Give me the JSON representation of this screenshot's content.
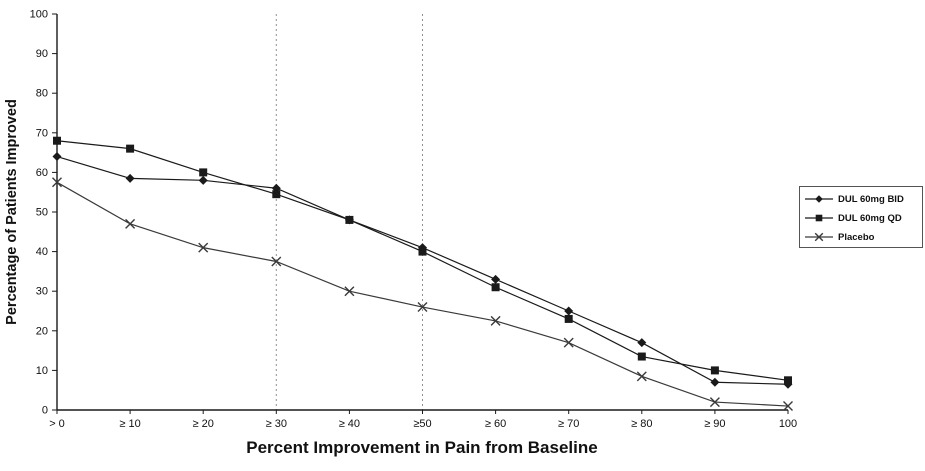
{
  "figure": {
    "background": "#ffffff",
    "ink_color": "#1a1a1a",
    "reference_line_color": "#909090"
  },
  "chart_data": {
    "type": "line",
    "title": "",
    "xlabel": "Percent Improvement in Pain from Baseline",
    "ylabel": "Percentage of Patients Improved",
    "categories": [
      "> 0",
      "≥ 10",
      "≥ 20",
      "≥ 30",
      "≥ 40",
      "≥50",
      "≥ 60",
      "≥ 70",
      "≥ 80",
      "≥ 90",
      "100"
    ],
    "series": [
      {
        "name": "DUL 60mg BID",
        "marker": "diamond",
        "color": "#1a1a1a",
        "values": [
          64,
          58.5,
          58,
          56,
          48,
          41,
          33,
          25,
          17,
          7,
          6.5
        ]
      },
      {
        "name": "DUL 60mg QD",
        "marker": "square",
        "color": "#1a1a1a",
        "values": [
          68,
          66,
          60,
          54.5,
          48,
          40,
          31,
          23,
          13.5,
          10,
          7.5
        ]
      },
      {
        "name": "Placebo",
        "marker": "x",
        "color": "#3a3a3a",
        "values": [
          57.5,
          47,
          41,
          37.5,
          30,
          26,
          22.5,
          17,
          8.5,
          2,
          1
        ]
      }
    ],
    "ylim": [
      0,
      100
    ],
    "ytick_step": 10,
    "reference_line_indices": [
      3,
      5
    ],
    "grid": false,
    "legend_position": "right-outside"
  }
}
